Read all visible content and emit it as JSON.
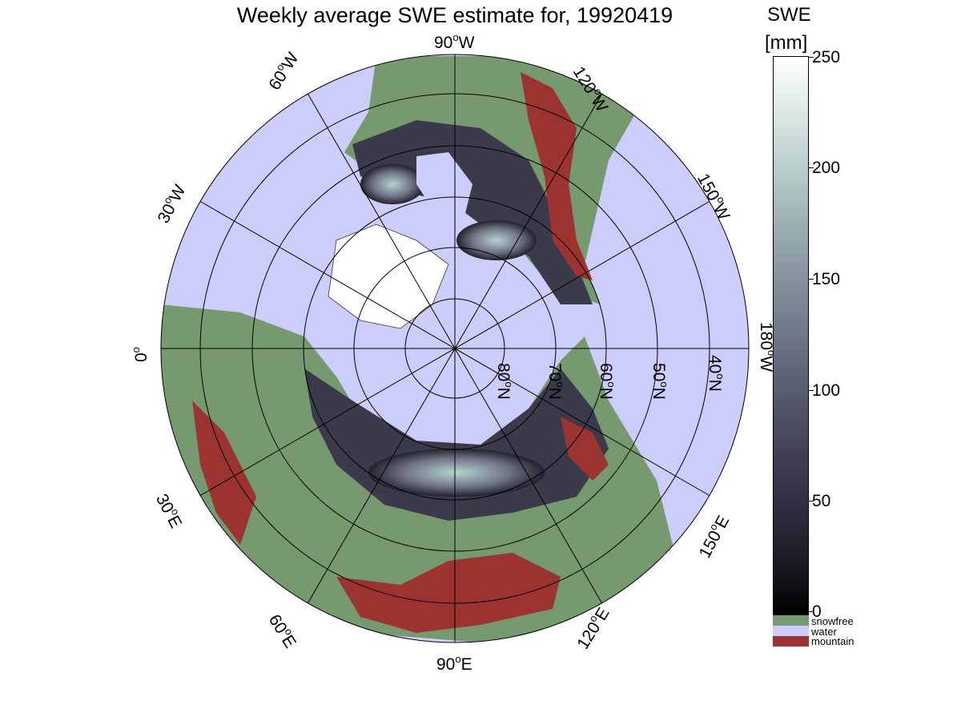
{
  "title": "Weekly average SWE estimate for, 19920419",
  "colorbar": {
    "title_line1": "SWE",
    "title_line2": "[mm]",
    "ticks": [
      "0",
      "50",
      "100",
      "150",
      "200",
      "250"
    ],
    "range": [
      0,
      250
    ]
  },
  "legend": [
    {
      "label": "snowfree",
      "color": "#76996f"
    },
    {
      "label": "water",
      "color": "#cdcdfc"
    },
    {
      "label": "mountain",
      "color": "#9b3431"
    }
  ],
  "longitude_labels": {
    "lon_90w": [
      "90",
      "W"
    ],
    "lon_60w": [
      "60",
      "W"
    ],
    "lon_120w": [
      "120",
      "W"
    ],
    "lon_30w": [
      "30",
      "W"
    ],
    "lon_150w": [
      "150",
      "W"
    ],
    "lon_0": [
      "0",
      ""
    ],
    "lon_180w": [
      "180",
      "W"
    ],
    "lon_30e": [
      "30",
      "E"
    ],
    "lon_150e": [
      "150",
      "E"
    ],
    "lon_60e": [
      "60",
      "E"
    ],
    "lon_120e": [
      "120",
      "E"
    ],
    "lon_90e": [
      "90",
      "E"
    ]
  },
  "latitude_labels": {
    "lat_80": [
      "80",
      "N"
    ],
    "lat_70": [
      "70",
      "N"
    ],
    "lat_60": [
      "60",
      "N"
    ],
    "lat_50": [
      "50",
      "N"
    ],
    "lat_40": [
      "40",
      "N"
    ]
  },
  "colors": {
    "water": "#cdcdfc",
    "snowfree": "#76996f",
    "mountain": "#9b3431",
    "snow_dark": "#1a1a22",
    "snow_light": "#b8d2ce"
  }
}
